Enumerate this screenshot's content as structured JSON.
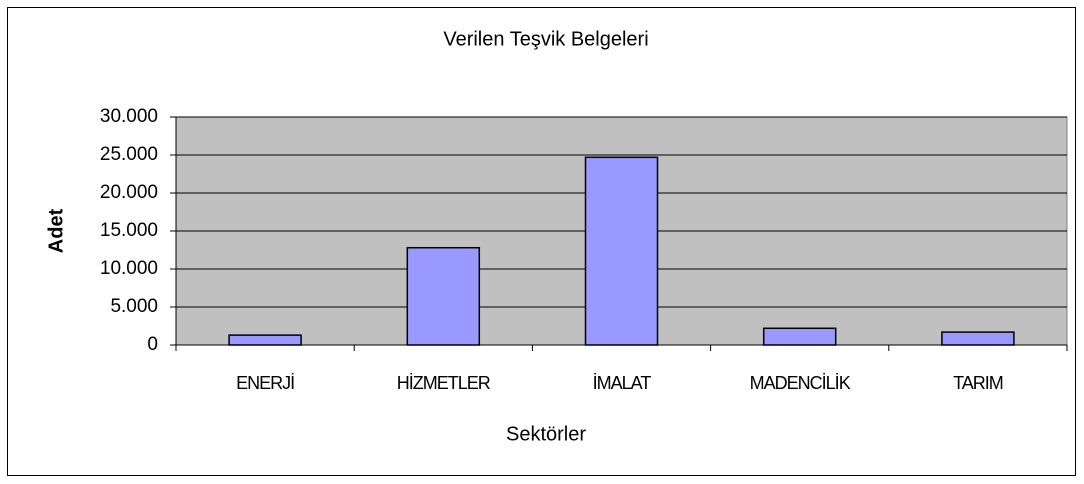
{
  "chart_data": {
    "type": "bar",
    "title": "Verilen Teşvik Belgeleri",
    "x_label": "Sektörler",
    "y_label": "Adet",
    "categories": [
      "ENERJİ",
      "HİZMETLER",
      "İMALAT",
      "MADENCİLİK",
      "TARIM"
    ],
    "values": [
      1300,
      12800,
      24700,
      2200,
      1700
    ],
    "color": "#9999ff",
    "ylim": [
      0,
      30000
    ],
    "yticks": [
      0,
      {
        "value": 5000,
        "label": "5.000"
      },
      {
        "value": 10000,
        "label": "10.000"
      },
      {
        "value": 15000,
        "label": "15.000"
      },
      {
        "value": 20000,
        "label": "20.000"
      },
      {
        "value": 25000,
        "label": "25.000"
      },
      {
        "value": 30000,
        "label": "30.000"
      }
    ],
    "grid": true
  }
}
